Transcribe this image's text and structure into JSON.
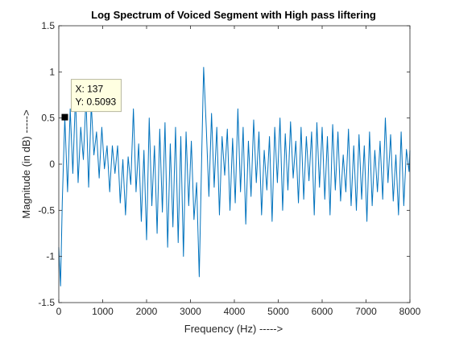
{
  "chart_data": {
    "type": "line",
    "title": "Log Spectrum of Voiced Segment with High pass liftering",
    "xlabel": "Frequency (Hz) ----->",
    "ylabel": "Magnitude (in dB) ----->",
    "xlim": [
      0,
      8000
    ],
    "ylim": [
      -1.5,
      1.5
    ],
    "x_ticks": [
      0,
      1000,
      2000,
      3000,
      4000,
      5000,
      6000,
      7000,
      8000
    ],
    "y_ticks": [
      -1.5,
      -1,
      -0.5,
      0,
      0.5,
      1,
      1.5
    ],
    "x_tick_labels": [
      "0",
      "1000",
      "2000",
      "3000",
      "4000",
      "5000",
      "6000",
      "7000",
      "8000"
    ],
    "y_tick_labels": [
      "-1.5",
      "-1",
      "-0.5",
      "0",
      "0.5",
      "1",
      "1.5"
    ],
    "grid": false,
    "line_color": "#0072BD",
    "series": [
      {
        "x": [
          0,
          40,
          80,
          137,
          200,
          260,
          320,
          380,
          440,
          500,
          560,
          620,
          680,
          740,
          800,
          860,
          920,
          980,
          1040,
          1100,
          1160,
          1220,
          1280,
          1340,
          1400,
          1460,
          1520,
          1580,
          1640,
          1700,
          1760,
          1820,
          1880,
          1940,
          2000,
          2060,
          2120,
          2180,
          2240,
          2300,
          2360,
          2420,
          2480,
          2540,
          2600,
          2660,
          2720,
          2780,
          2840,
          2900,
          2960,
          3020,
          3080,
          3140,
          3200,
          3260,
          3300,
          3360,
          3420,
          3480,
          3540,
          3600,
          3660,
          3720,
          3780,
          3840,
          3900,
          3960,
          4020,
          4080,
          4140,
          4200,
          4260,
          4320,
          4380,
          4440,
          4500,
          4560,
          4620,
          4680,
          4740,
          4800,
          4860,
          4920,
          4980,
          5040,
          5100,
          5160,
          5220,
          5280,
          5340,
          5400,
          5460,
          5520,
          5580,
          5640,
          5700,
          5760,
          5820,
          5880,
          5940,
          6000,
          6060,
          6120,
          6180,
          6240,
          6300,
          6360,
          6420,
          6480,
          6540,
          6600,
          6660,
          6720,
          6780,
          6840,
          6900,
          6960,
          7020,
          7080,
          7140,
          7200,
          7260,
          7320,
          7380,
          7440,
          7500,
          7560,
          7620,
          7680,
          7740,
          7800,
          7860,
          7920,
          7980,
          8000
        ],
        "y": [
          -0.9,
          -1.32,
          -0.4,
          0.5093,
          -0.3,
          0.6,
          -0.1,
          0.75,
          -0.2,
          0.4,
          0.05,
          0.72,
          -0.25,
          0.65,
          0.1,
          0.35,
          -0.15,
          0.4,
          -0.05,
          0.2,
          -0.3,
          0.2,
          -0.1,
          0.2,
          -0.42,
          0.05,
          -0.55,
          0.08,
          -0.22,
          0.6,
          -0.3,
          0.22,
          -0.62,
          0.15,
          -0.82,
          0.5,
          -0.45,
          0.2,
          -0.75,
          0.38,
          -0.52,
          0.45,
          -0.9,
          0.22,
          -0.68,
          0.4,
          -0.85,
          0.3,
          -1.0,
          0.35,
          -0.45,
          0.25,
          -0.6,
          -0.2,
          -1.22,
          0.18,
          1.05,
          0.4,
          -0.35,
          0.55,
          -0.25,
          0.4,
          -0.55,
          0.3,
          -0.12,
          0.38,
          -0.5,
          0.28,
          -0.42,
          0.6,
          -0.3,
          0.4,
          -0.65,
          0.25,
          -0.35,
          0.48,
          -0.2,
          0.35,
          -0.55,
          0.15,
          -0.28,
          0.3,
          -0.62,
          0.4,
          -0.2,
          0.5,
          -0.5,
          0.33,
          -0.28,
          0.46,
          -0.15,
          0.25,
          -0.42,
          0.4,
          -0.38,
          0.3,
          -0.18,
          0.35,
          -0.55,
          0.45,
          -0.25,
          0.4,
          -0.38,
          0.3,
          -0.55,
          0.43,
          -0.28,
          0.35,
          -0.4,
          0.1,
          -0.3,
          0.38,
          -0.45,
          0.2,
          -0.5,
          0.32,
          -0.38,
          0.2,
          -0.62,
          0.35,
          -0.45,
          0.15,
          -0.3,
          0.25,
          -0.38,
          0.5,
          -0.2,
          0.32,
          -0.4,
          0.1,
          -0.55,
          0.35,
          -0.45,
          0.16,
          -0.08,
          0.15
        ]
      }
    ],
    "datatip": {
      "x": 137,
      "y": 0.5093,
      "line1": "X: 137",
      "line2": "Y: 0.5093"
    }
  }
}
